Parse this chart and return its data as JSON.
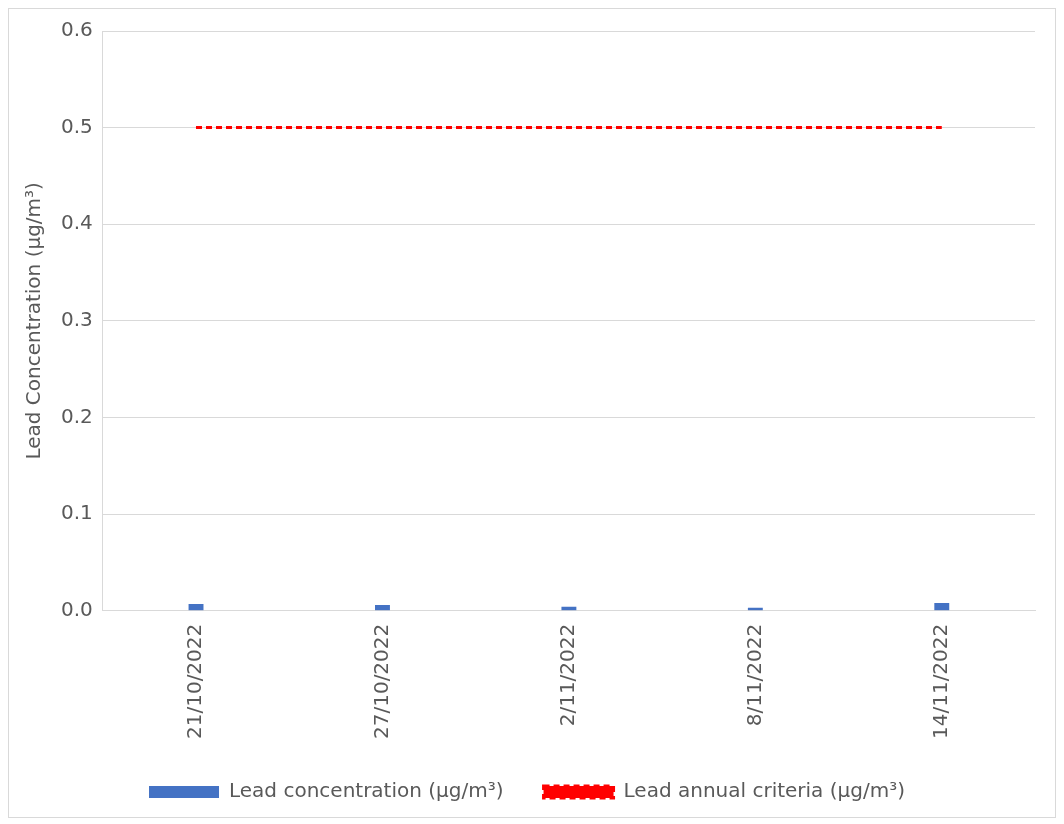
{
  "chart_data": {
    "type": "bar",
    "ylabel": "Lead Concentration (µg/m³)",
    "categories": [
      "21/10/2022",
      "27/10/2022",
      "2/11/2022",
      "8/11/2022",
      "14/11/2022"
    ],
    "series": [
      {
        "name": "Lead concentration (µg/m³)",
        "color": "#4472c4",
        "values": [
          0.007,
          0.006,
          0.004,
          0.003,
          0.008
        ]
      },
      {
        "name": "Lead annual criteria (µg/m³)",
        "type": "line",
        "color": "#ff0000",
        "line_style": "dashed",
        "values": [
          0.5,
          0.5,
          0.5,
          0.5,
          0.5
        ]
      }
    ],
    "ylim": [
      0,
      0.6
    ],
    "yticks": [
      {
        "value": 0,
        "label": "0.0"
      },
      {
        "value": 0.1,
        "label": "0.1"
      },
      {
        "value": 0.2,
        "label": "0.2"
      },
      {
        "value": 0.3,
        "label": "0.3"
      },
      {
        "value": 0.4,
        "label": "0.4"
      },
      {
        "value": 0.5,
        "label": "0.5"
      },
      {
        "value": 0.6,
        "label": "0.6"
      }
    ],
    "grid": "y",
    "legend": "bottom",
    "marker": "none"
  }
}
